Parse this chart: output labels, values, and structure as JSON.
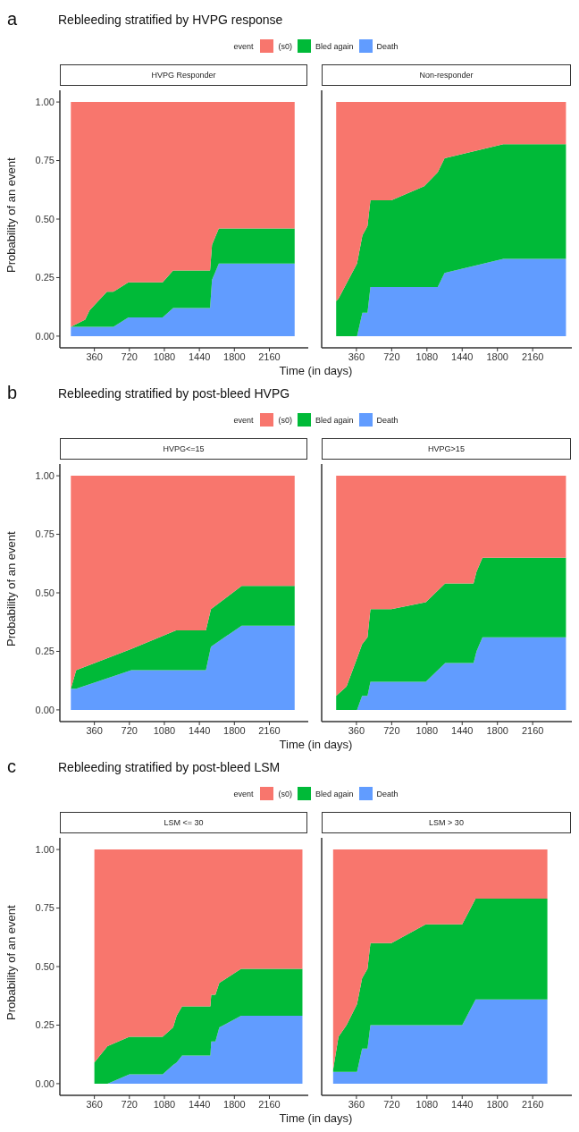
{
  "chart_data": [
    {
      "type": "area",
      "stacked": true,
      "title": "Rebleeding stratified by HVPG response",
      "annotations": [
        "a"
      ],
      "subtitle": "HVPG Responder",
      "xlabel": "Time (in days)",
      "ylabel": "Probability of an event",
      "legend": "top",
      "legend_title": "event",
      "xlim": [
        5,
        2560
      ],
      "xticks": [
        360,
        720,
        1080,
        1440,
        1800,
        2160
      ],
      "ylim": [
        -0.05,
        1.05
      ],
      "yticks": [
        {
          "value": 0,
          "label": "0.00"
        },
        {
          "value": 0.25,
          "label": "0.25"
        },
        {
          "value": 0.5,
          "label": "0.50"
        },
        {
          "value": 0.75,
          "label": "0.75"
        },
        {
          "value": 1,
          "label": "1.00"
        }
      ],
      "x": [
        118,
        265,
        311,
        489,
        556,
        710,
        1062,
        1170,
        1550,
        1570,
        1640,
        2420
      ],
      "series": [
        {
          "name": "Death",
          "color": "#619cff",
          "values": [
            0.04,
            0.04,
            0.04,
            0.04,
            0.04,
            0.08,
            0.08,
            0.12,
            0.12,
            0.24,
            0.31,
            0.31
          ]
        },
        {
          "name": "Bled again",
          "color": "#00ba38",
          "values": [
            0,
            0.03,
            0.07,
            0.15,
            0.15,
            0.15,
            0.15,
            0.16,
            0.16,
            0.15,
            0.15,
            0.15
          ]
        },
        {
          "name": "(s0)",
          "color": "#f8766d",
          "values": [
            0.96,
            0.93,
            0.89,
            0.81,
            0.81,
            0.77,
            0.77,
            0.72,
            0.72,
            0.61,
            0.54,
            0.54
          ]
        }
      ]
    },
    {
      "type": "area",
      "stacked": true,
      "subtitle": "Non-responder",
      "tick_labels": "x",
      "xlim": [
        5,
        2560
      ],
      "xticks": [
        360,
        720,
        1080,
        1440,
        1800,
        2160
      ],
      "ylim": [
        -0.05,
        1.05
      ],
      "x": [
        153,
        177,
        366,
        421,
        473,
        503,
        717,
        1052,
        1190,
        1260,
        1860,
        2500
      ],
      "series": [
        {
          "color": "#619cff",
          "values": [
            0,
            0,
            0,
            0.1,
            0.1,
            0.21,
            0.21,
            0.21,
            0.21,
            0.27,
            0.33,
            0.33
          ]
        },
        {
          "color": "#00ba38",
          "values": [
            0.15,
            0.16,
            0.31,
            0.33,
            0.37,
            0.37,
            0.37,
            0.43,
            0.49,
            0.49,
            0.49,
            0.49
          ]
        },
        {
          "color": "#f8766d",
          "values": [
            0.85,
            0.84,
            0.69,
            0.57,
            0.53,
            0.42,
            0.42,
            0.36,
            0.3,
            0.24,
            0.18,
            0.18
          ]
        }
      ]
    },
    {
      "type": "area",
      "stacked": true,
      "title": "Rebleeding stratified by post-bleed HVPG",
      "annotations": [
        "b"
      ],
      "subtitle": "HVPG<=15",
      "xlabel": "Time (in days)",
      "ylabel": "Probability of an event",
      "legend": "top",
      "legend_title": "event",
      "xlim": [
        5,
        2560
      ],
      "xticks": [
        360,
        720,
        1080,
        1440,
        1800,
        2160
      ],
      "ylim": [
        -0.05,
        1.05
      ],
      "yticks": [
        {
          "value": 0,
          "label": "0.00"
        },
        {
          "value": 0.25,
          "label": "0.25"
        },
        {
          "value": 0.5,
          "label": "0.50"
        },
        {
          "value": 0.75,
          "label": "0.75"
        },
        {
          "value": 1,
          "label": "1.00"
        }
      ],
      "x": [
        118,
        173,
        740,
        1200,
        1507,
        1559,
        1875,
        2420
      ],
      "series": [
        {
          "name": "Death",
          "color": "#619cff",
          "values": [
            0.09,
            0.09,
            0.17,
            0.17,
            0.17,
            0.27,
            0.36,
            0.36
          ]
        },
        {
          "name": "Bled again",
          "color": "#00ba38",
          "values": [
            0,
            0.08,
            0.09,
            0.17,
            0.17,
            0.16,
            0.17,
            0.17
          ]
        },
        {
          "name": "(s0)",
          "color": "#f8766d",
          "values": [
            0.91,
            0.83,
            0.74,
            0.66,
            0.66,
            0.57,
            0.47,
            0.47
          ]
        }
      ]
    },
    {
      "type": "area",
      "stacked": true,
      "subtitle": "HVPG>15",
      "tick_labels": "x",
      "xlim": [
        5,
        2560
      ],
      "xticks": [
        360,
        720,
        1080,
        1440,
        1800,
        2160
      ],
      "ylim": [
        -0.05,
        1.05
      ],
      "x": [
        153,
        259,
        366,
        418,
        473,
        503,
        717,
        1068,
        1266,
        1556,
        1586,
        1647,
        2500
      ],
      "series": [
        {
          "color": "#619cff",
          "values": [
            0,
            0,
            0,
            0.06,
            0.06,
            0.12,
            0.12,
            0.12,
            0.2,
            0.2,
            0.25,
            0.31,
            0.31
          ]
        },
        {
          "color": "#00ba38",
          "values": [
            0.06,
            0.1,
            0.22,
            0.22,
            0.25,
            0.31,
            0.31,
            0.34,
            0.34,
            0.34,
            0.34,
            0.34,
            0.34
          ]
        },
        {
          "color": "#f8766d",
          "values": [
            0.94,
            0.9,
            0.78,
            0.72,
            0.69,
            0.57,
            0.57,
            0.54,
            0.46,
            0.46,
            0.41,
            0.35,
            0.35
          ]
        }
      ]
    },
    {
      "type": "area",
      "stacked": true,
      "title": "Rebleeding stratified by post-bleed LSM",
      "annotations": [
        "c"
      ],
      "subtitle": "LSM <= 30",
      "xlabel": "Time (in days)",
      "ylabel": "Probability of an event",
      "legend": "top",
      "legend_title": "event",
      "xlim": [
        5,
        2560
      ],
      "xticks": [
        360,
        720,
        1080,
        1440,
        1800,
        2160
      ],
      "ylim": [
        -0.05,
        1.05
      ],
      "yticks": [
        {
          "value": 0,
          "label": "0.00"
        },
        {
          "value": 0.25,
          "label": "0.25"
        },
        {
          "value": 0.5,
          "label": "0.50"
        },
        {
          "value": 0.75,
          "label": "0.75"
        },
        {
          "value": 1,
          "label": "1.00"
        }
      ],
      "x": [
        360,
        495,
        720,
        1062,
        1170,
        1206,
        1262,
        1553,
        1562,
        1605,
        1645,
        1869,
        2500
      ],
      "series": [
        {
          "name": "Death",
          "color": "#619cff",
          "values": [
            0,
            0,
            0.04,
            0.04,
            0.08,
            0.09,
            0.12,
            0.12,
            0.18,
            0.18,
            0.24,
            0.29,
            0.29
          ]
        },
        {
          "name": "Bled again",
          "color": "#00ba38",
          "values": [
            0.09,
            0.16,
            0.16,
            0.16,
            0.16,
            0.2,
            0.21,
            0.21,
            0.2,
            0.2,
            0.19,
            0.2,
            0.2
          ]
        },
        {
          "name": "(s0)",
          "color": "#f8766d",
          "values": [
            0.91,
            0.84,
            0.8,
            0.8,
            0.76,
            0.71,
            0.67,
            0.67,
            0.62,
            0.62,
            0.57,
            0.51,
            0.51
          ]
        }
      ]
    },
    {
      "type": "area",
      "stacked": true,
      "subtitle": "LSM > 30",
      "tick_labels": "x",
      "xlim": [
        5,
        2560
      ],
      "xticks": [
        360,
        720,
        1080,
        1440,
        1800,
        2160
      ],
      "ylim": [
        -0.05,
        1.05
      ],
      "x": [
        122,
        177,
        259,
        366,
        418,
        473,
        503,
        717,
        1068,
        1440,
        1577,
        2310
      ],
      "series": [
        {
          "color": "#619cff",
          "values": [
            0.05,
            0.05,
            0.05,
            0.05,
            0.15,
            0.15,
            0.25,
            0.25,
            0.25,
            0.25,
            0.36,
            0.36
          ]
        },
        {
          "color": "#00ba38",
          "values": [
            0.01,
            0.15,
            0.2,
            0.29,
            0.3,
            0.34,
            0.35,
            0.35,
            0.43,
            0.43,
            0.43,
            0.43
          ]
        },
        {
          "color": "#f8766d",
          "values": [
            0.94,
            0.8,
            0.75,
            0.66,
            0.55,
            0.51,
            0.4,
            0.4,
            0.32,
            0.32,
            0.21,
            0.21
          ]
        }
      ]
    }
  ]
}
